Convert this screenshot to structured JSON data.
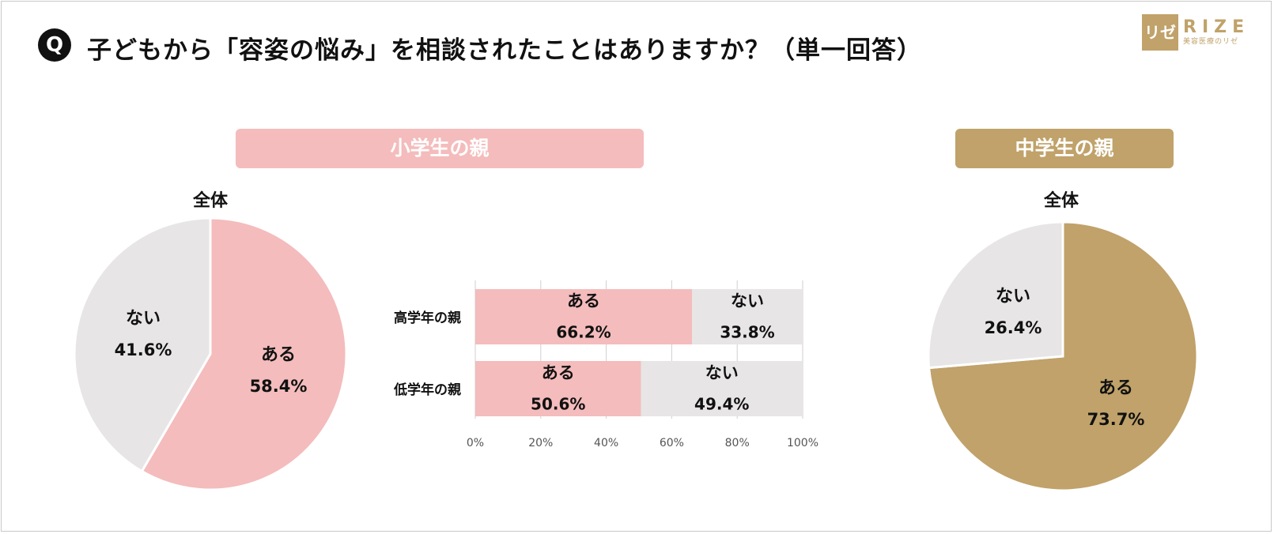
{
  "header": {
    "q_badge": "Q",
    "question": "子どもから「容姿の悩み」を相談されたことはありますか？（単一回答）"
  },
  "logo": {
    "mark": "リゼ",
    "word": "RIZE",
    "sub": "美容医療のリゼ"
  },
  "groups": {
    "elementary": "小学生の親",
    "junior_high": "中学生の親"
  },
  "colors": {
    "yes_pink": "#f4bcbc",
    "yes_gold": "#c0a26a",
    "no_gray": "#e7e5e5"
  },
  "chart_data": [
    {
      "type": "pie",
      "title": "全体",
      "group": "小学生の親",
      "categories": [
        "ある",
        "ない"
      ],
      "values": [
        58.4,
        41.6
      ],
      "labels": [
        "58.4%",
        "41.6%"
      ],
      "colors": [
        "#f4bcbc",
        "#e7e5e5"
      ]
    },
    {
      "type": "bar",
      "orientation": "horizontal",
      "stacked": true,
      "group": "小学生の親",
      "categories": [
        "高学年の親",
        "低学年の親"
      ],
      "series": [
        {
          "name": "ある",
          "values": [
            66.2,
            50.6
          ],
          "labels": [
            "66.2%",
            "50.6%"
          ],
          "color": "#f4bcbc"
        },
        {
          "name": "ない",
          "values": [
            33.8,
            49.4
          ],
          "labels": [
            "33.8%",
            "49.4%"
          ],
          "color": "#e7e5e5"
        }
      ],
      "xlim": [
        0,
        100
      ],
      "xticks": [
        "0%",
        "20%",
        "40%",
        "60%",
        "80%",
        "100%"
      ],
      "grid": true
    },
    {
      "type": "pie",
      "title": "全体",
      "group": "中学生の親",
      "categories": [
        "ある",
        "ない"
      ],
      "values": [
        73.7,
        26.4
      ],
      "labels": [
        "73.7%",
        "26.4%"
      ],
      "colors": [
        "#c0a26a",
        "#e7e5e5"
      ]
    }
  ]
}
